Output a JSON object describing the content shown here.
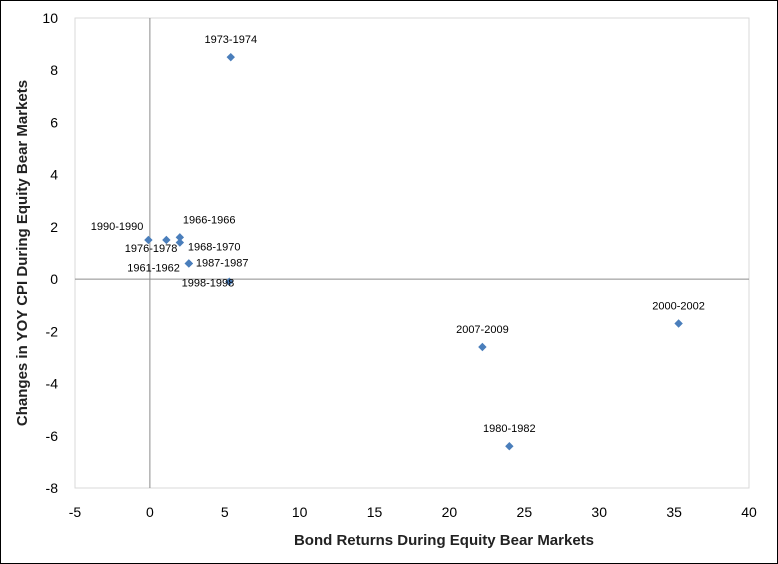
{
  "chart_data": {
    "type": "scatter",
    "title": "",
    "xlabel": "Bond Returns During Equity Bear Markets",
    "ylabel": "Changes in YOY CPI During Equity Bear Markets",
    "xlim": [
      -5,
      40
    ],
    "ylim": [
      -8,
      10
    ],
    "x_ticks": [
      -5,
      0,
      5,
      10,
      15,
      20,
      25,
      30,
      35,
      40
    ],
    "y_ticks": [
      -8,
      -6,
      -4,
      -2,
      0,
      2,
      4,
      6,
      8,
      10
    ],
    "grid": false,
    "legend": "none",
    "marker": "diamond",
    "marker_color": "#4a7ebb",
    "points": [
      {
        "label": "1973-1974",
        "x": 5.4,
        "y": 8.5
      },
      {
        "label": "1990-1990",
        "x": -0.1,
        "y": 1.5
      },
      {
        "label": "1966-1966",
        "x": 2.0,
        "y": 1.6
      },
      {
        "label": "1976-1978",
        "x": 1.1,
        "y": 1.5
      },
      {
        "label": "1968-1970",
        "x": 2.0,
        "y": 1.4
      },
      {
        "label": "1961-1962",
        "x": 2.6,
        "y": 0.6
      },
      {
        "label": "1987-1987",
        "x": 2.6,
        "y": 0.6
      },
      {
        "label": "1998-1998",
        "x": 5.3,
        "y": -0.1
      },
      {
        "label": "2007-2009",
        "x": 22.2,
        "y": -2.6
      },
      {
        "label": "2000-2002",
        "x": 35.3,
        "y": -1.7
      },
      {
        "label": "1980-1982",
        "x": 24.0,
        "y": -6.4
      }
    ]
  }
}
